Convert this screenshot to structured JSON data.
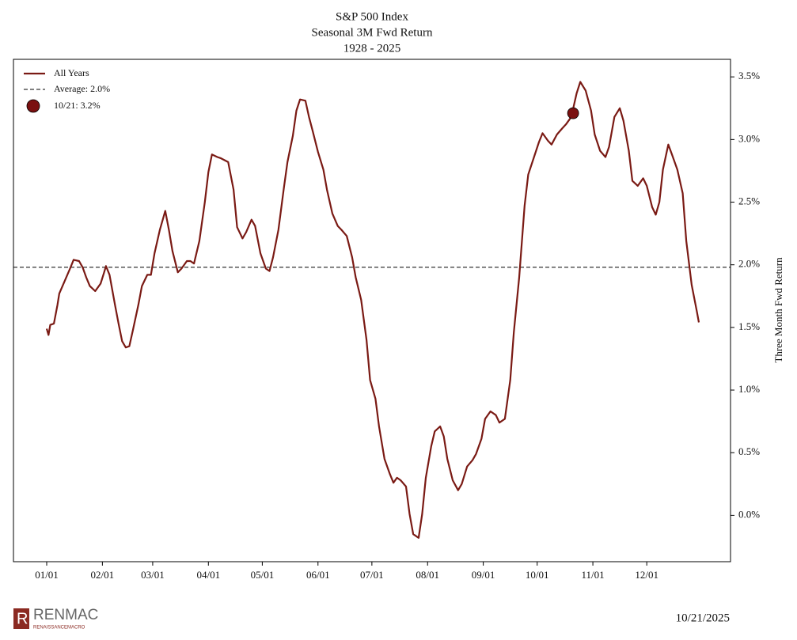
{
  "chart_data": {
    "type": "line",
    "title": [
      "S&P 500 Index",
      "Seasonal 3M Fwd Return",
      "1928 - 2025"
    ],
    "ylabel": "Three Month Fwd Return",
    "ylim": [
      -0.37,
      3.64
    ],
    "yticks": [
      {
        "value": 0,
        "label": "0.0%"
      },
      {
        "value": 0.5,
        "label": "0.5%"
      },
      {
        "value": 1,
        "label": "1.0%"
      },
      {
        "value": 1.5,
        "label": "1.5%"
      },
      {
        "value": 2,
        "label": "2.0%"
      },
      {
        "value": 2.5,
        "label": "2.5%"
      },
      {
        "value": 3,
        "label": "3.0%"
      },
      {
        "value": 3.5,
        "label": "3.5%"
      }
    ],
    "xticks": [
      "01/01",
      "02/01",
      "03/01",
      "04/01",
      "05/01",
      "06/01",
      "07/01",
      "08/01",
      "09/01",
      "10/01",
      "11/01",
      "12/01"
    ],
    "x": [
      "01/01",
      "01/02",
      "01/03",
      "01/05",
      "01/07",
      "01/08",
      "01/11",
      "01/14",
      "01/16",
      "01/19",
      "01/21",
      "01/23",
      "01/25",
      "01/28",
      "01/31",
      "02/02",
      "02/03",
      "02/05",
      "02/08",
      "02/10",
      "02/12",
      "02/14",
      "02/16",
      "02/18",
      "02/21",
      "02/23",
      "02/26",
      "02/28",
      "03/02",
      "03/05",
      "03/08",
      "03/10",
      "03/12",
      "03/15",
      "03/17",
      "03/20",
      "03/22",
      "03/24",
      "03/27",
      "03/30",
      "04/01",
      "04/03",
      "04/06",
      "04/08",
      "04/12",
      "04/15",
      "04/17",
      "04/20",
      "04/22",
      "04/25",
      "04/27",
      "04/30",
      "05/03",
      "05/05",
      "05/07",
      "05/10",
      "05/13",
      "05/15",
      "05/18",
      "05/20",
      "05/22",
      "05/25",
      "05/27",
      "05/29",
      "06/01",
      "06/04",
      "06/06",
      "06/09",
      "06/12",
      "06/14",
      "06/17",
      "06/20",
      "06/22",
      "06/25",
      "06/28",
      "06/30",
      "07/03",
      "07/05",
      "07/08",
      "07/11",
      "07/13",
      "07/15",
      "07/17",
      "07/20",
      "07/22",
      "07/24",
      "07/27",
      "07/29",
      "07/31",
      "08/03",
      "08/05",
      "08/08",
      "08/10",
      "08/12",
      "08/15",
      "08/18",
      "08/20",
      "08/23",
      "08/26",
      "08/28",
      "08/31",
      "09/02",
      "09/05",
      "09/08",
      "09/10",
      "09/13",
      "09/16",
      "09/18",
      "09/21",
      "09/24",
      "09/26",
      "09/29",
      "10/02",
      "10/04",
      "10/07",
      "10/09",
      "10/12",
      "10/15",
      "10/17",
      "10/20",
      "10/23",
      "10/25",
      "10/28",
      "10/31",
      "11/02",
      "11/05",
      "11/08",
      "11/10",
      "11/13",
      "11/16",
      "11/18",
      "11/21",
      "11/23",
      "11/26",
      "11/29",
      "12/01",
      "12/04",
      "12/06",
      "12/08",
      "12/10",
      "12/13",
      "12/15",
      "12/18",
      "12/21",
      "12/23",
      "12/26",
      "12/29",
      "12/30"
    ],
    "series": [
      {
        "name": "All Years",
        "color": "#7a1a14",
        "values": [
          1.49,
          1.44,
          1.52,
          1.53,
          1.68,
          1.77,
          1.87,
          1.97,
          2.04,
          2.03,
          1.98,
          1.9,
          1.83,
          1.79,
          1.85,
          1.94,
          1.99,
          1.92,
          1.68,
          1.53,
          1.39,
          1.34,
          1.35,
          1.48,
          1.68,
          1.83,
          1.92,
          1.92,
          2.09,
          2.28,
          2.43,
          2.28,
          2.11,
          1.94,
          1.97,
          2.03,
          2.03,
          2.01,
          2.19,
          2.5,
          2.74,
          2.88,
          2.86,
          2.85,
          2.82,
          2.6,
          2.3,
          2.21,
          2.26,
          2.36,
          2.31,
          2.09,
          1.97,
          1.95,
          2.06,
          2.28,
          2.61,
          2.82,
          3.03,
          3.23,
          3.32,
          3.31,
          3.18,
          3.07,
          2.9,
          2.76,
          2.6,
          2.41,
          2.31,
          2.28,
          2.23,
          2.06,
          1.9,
          1.72,
          1.4,
          1.08,
          0.93,
          0.71,
          0.45,
          0.33,
          0.26,
          0.3,
          0.28,
          0.23,
          0.01,
          -0.15,
          -0.18,
          0.01,
          0.3,
          0.55,
          0.67,
          0.71,
          0.63,
          0.45,
          0.28,
          0.2,
          0.25,
          0.39,
          0.44,
          0.49,
          0.61,
          0.77,
          0.83,
          0.8,
          0.74,
          0.77,
          1.08,
          1.46,
          1.9,
          2.47,
          2.72,
          2.85,
          2.98,
          3.05,
          2.99,
          2.96,
          3.04,
          3.09,
          3.12,
          3.18,
          3.37,
          3.46,
          3.39,
          3.23,
          3.04,
          2.91,
          2.86,
          2.94,
          3.18,
          3.25,
          3.15,
          2.91,
          2.67,
          2.63,
          2.69,
          2.63,
          2.46,
          2.4,
          2.5,
          2.76,
          2.96,
          2.88,
          2.76,
          2.57,
          2.19,
          1.84,
          1.62,
          1.54
        ]
      }
    ],
    "average": {
      "label": "Average: 2.0%",
      "value": 1.98
    },
    "marker": {
      "label": "10/21: 3.2%",
      "x": "10/21",
      "value": 3.21,
      "color": "#7a1010"
    }
  },
  "footer": {
    "logo": "RENMAC",
    "logo_sub": "RENAISSANCEMACRO",
    "date": "10/21/2025"
  }
}
